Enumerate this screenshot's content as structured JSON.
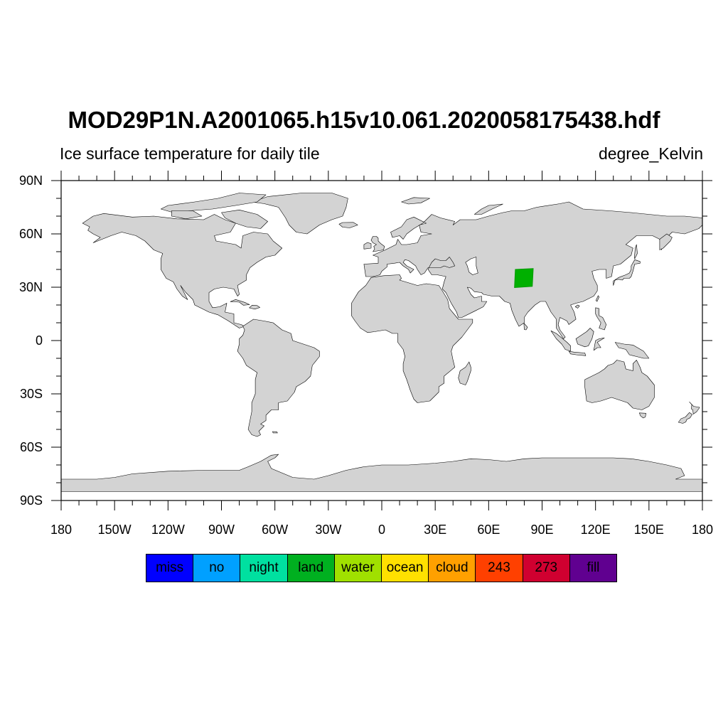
{
  "header": {
    "title": "MOD29P1N.A2001065.h15v10.061.2020058175438.hdf",
    "subtitle_left": "Ice surface temperature for daily tile",
    "subtitle_right": "degree_Kelvin"
  },
  "map": {
    "projection": "cylindrical-equidistant",
    "lon_range": [
      -180,
      180
    ],
    "lat_range": [
      -90,
      90
    ],
    "land_color": "#d3d3d3",
    "ocean_color": "#ffffff",
    "lat_ticks": [
      {
        "value": 90,
        "label": "90N"
      },
      {
        "value": 60,
        "label": "60N"
      },
      {
        "value": 30,
        "label": "30N"
      },
      {
        "value": 0,
        "label": "0"
      },
      {
        "value": -30,
        "label": "30S"
      },
      {
        "value": -60,
        "label": "60S"
      },
      {
        "value": -90,
        "label": "90S"
      }
    ],
    "lon_ticks": [
      {
        "value": -180,
        "label": "180"
      },
      {
        "value": -150,
        "label": "150W"
      },
      {
        "value": -120,
        "label": "120W"
      },
      {
        "value": -90,
        "label": "90W"
      },
      {
        "value": -60,
        "label": "60W"
      },
      {
        "value": -30,
        "label": "30W"
      },
      {
        "value": 0,
        "label": "0"
      },
      {
        "value": 30,
        "label": "30E"
      },
      {
        "value": 60,
        "label": "60E"
      },
      {
        "value": 90,
        "label": "90E"
      },
      {
        "value": 120,
        "label": "120E"
      },
      {
        "value": 150,
        "label": "150E"
      },
      {
        "value": 180,
        "label": "180"
      }
    ],
    "data_tile": {
      "category": "land",
      "color": "#00b000",
      "corners": [
        [
          75.0,
          40.0
        ],
        [
          85.0,
          40.5
        ],
        [
          84.5,
          30.5
        ],
        [
          74.5,
          29.8
        ]
      ]
    }
  },
  "colorbar": {
    "entries": [
      {
        "label": "miss",
        "color": "#0000ff"
      },
      {
        "label": "no",
        "color": "#00a0ff"
      },
      {
        "label": "night",
        "color": "#00e0a0"
      },
      {
        "label": "land",
        "color": "#00b020"
      },
      {
        "label": "water",
        "color": "#a0e000"
      },
      {
        "label": "ocean",
        "color": "#ffe000"
      },
      {
        "label": "cloud",
        "color": "#ffa000"
      },
      {
        "label": "243",
        "color": "#ff4000"
      },
      {
        "label": "273",
        "color": "#d00030"
      },
      {
        "label": "fill",
        "color": "#600090"
      }
    ]
  }
}
